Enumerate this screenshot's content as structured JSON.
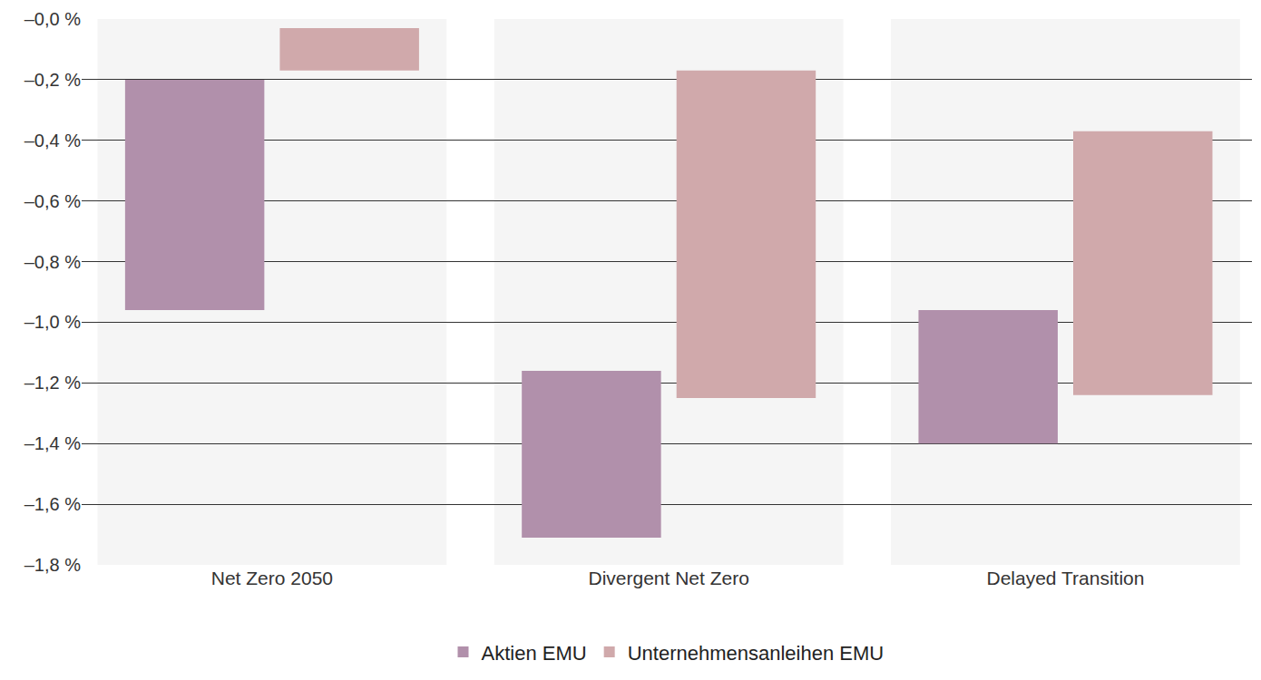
{
  "chart_data": {
    "type": "bar",
    "categories": [
      "Net Zero 2050",
      "Divergent Net Zero",
      "Delayed Transition"
    ],
    "series": [
      {
        "name": "Aktien EMU",
        "color": "#b190ab",
        "values": [
          [
            -0.96,
            -0.2
          ],
          [
            -1.71,
            -1.16
          ],
          [
            -1.4,
            -0.96
          ]
        ]
      },
      {
        "name": "Unternehmensanleihen EMU",
        "color": "#d0a9ab",
        "values": [
          [
            -0.17,
            -0.03
          ],
          [
            -1.25,
            -0.17
          ],
          [
            -1.24,
            -0.37
          ]
        ]
      }
    ],
    "ylim": [
      -1.8,
      0
    ],
    "yticks": [
      {
        "value": 0,
        "label": "–0,0 %"
      },
      {
        "value": -0.2,
        "label": "–0,2 %"
      },
      {
        "value": -0.4,
        "label": "–0,4 %"
      },
      {
        "value": -0.6,
        "label": "–0,6 %"
      },
      {
        "value": -0.8,
        "label": "–0,8 %"
      },
      {
        "value": -1.0,
        "label": "–1,0 %"
      },
      {
        "value": -1.2,
        "label": "–1,2 %"
      },
      {
        "value": -1.4,
        "label": "–1,4 %"
      },
      {
        "value": -1.6,
        "label": "–1,6 %"
      },
      {
        "value": -1.8,
        "label": "–1,8 %"
      }
    ],
    "grid": true,
    "legend": "bottom"
  }
}
